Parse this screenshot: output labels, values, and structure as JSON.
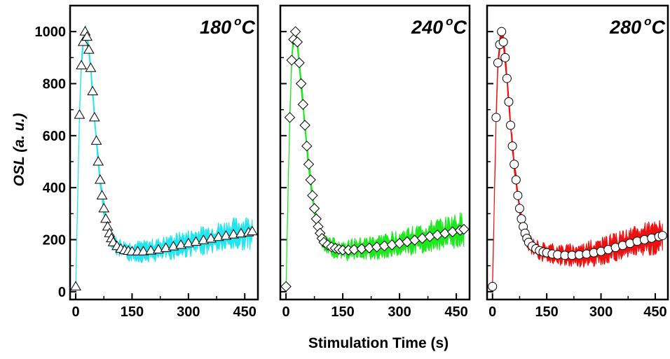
{
  "figure": {
    "ylabel": "OSL (a. u.)",
    "xlabel": "Stimulation Time (s)"
  },
  "chart_data": [
    {
      "type": "scatter",
      "title": "180 °C",
      "title_main": "180",
      "title_sup": "o",
      "title_unit": "C",
      "fill_color": "#22e5ee",
      "marker": "triangle",
      "xlim": [
        -15,
        485
      ],
      "ylim": [
        -30,
        1100
      ],
      "xticks": [
        0,
        150,
        300,
        450
      ],
      "yticks": [
        0,
        200,
        400,
        600,
        800,
        1000
      ],
      "series": [
        {
          "x": [
            0,
            10,
            15,
            20,
            25,
            30,
            35,
            40,
            45,
            50,
            55,
            60,
            65,
            70,
            75,
            80,
            85,
            90,
            95,
            100,
            110,
            120,
            130,
            140,
            150,
            165,
            180,
            200,
            220,
            240,
            260,
            280,
            300,
            320,
            340,
            360,
            380,
            400,
            420,
            440,
            460,
            470
          ],
          "y": [
            20,
            680,
            870,
            960,
            1000,
            980,
            930,
            860,
            770,
            670,
            580,
            500,
            430,
            370,
            320,
            280,
            250,
            225,
            205,
            190,
            175,
            165,
            160,
            157,
            155,
            155,
            155,
            158,
            162,
            168,
            174,
            180,
            186,
            192,
            198,
            204,
            210,
            215,
            220,
            224,
            228,
            232
          ]
        }
      ]
    },
    {
      "type": "scatter",
      "title": "240 °C",
      "title_main": "240",
      "title_sup": "o",
      "title_unit": "C",
      "fill_color": "#1ee81e",
      "marker": "diamond",
      "xlim": [
        -15,
        485
      ],
      "ylim": [
        -30,
        1100
      ],
      "xticks": [
        0,
        150,
        300,
        450
      ],
      "yticks": [
        0,
        200,
        400,
        600,
        800,
        1000
      ],
      "series": [
        {
          "x": [
            0,
            10,
            15,
            20,
            25,
            30,
            35,
            40,
            45,
            50,
            55,
            60,
            65,
            70,
            75,
            80,
            85,
            90,
            95,
            100,
            110,
            120,
            130,
            140,
            150,
            165,
            180,
            200,
            220,
            240,
            260,
            280,
            300,
            320,
            340,
            360,
            380,
            400,
            420,
            440,
            460,
            470
          ],
          "y": [
            20,
            670,
            890,
            970,
            1000,
            960,
            880,
            800,
            720,
            640,
            560,
            490,
            430,
            370,
            320,
            280,
            250,
            225,
            205,
            190,
            180,
            172,
            167,
            163,
            160,
            160,
            162,
            165,
            168,
            172,
            176,
            180,
            186,
            192,
            198,
            205,
            212,
            218,
            224,
            230,
            236,
            240
          ]
        }
      ]
    },
    {
      "type": "scatter",
      "title": "280 °C",
      "title_main": "280",
      "title_sup": "o",
      "title_unit": "C",
      "fill_color": "#ee1111",
      "marker": "circle",
      "xlim": [
        -15,
        485
      ],
      "ylim": [
        -30,
        1100
      ],
      "xticks": [
        0,
        150,
        300,
        450
      ],
      "yticks": [
        0,
        200,
        400,
        600,
        800,
        1000
      ],
      "series": [
        {
          "x": [
            0,
            10,
            15,
            20,
            25,
            30,
            35,
            40,
            45,
            50,
            55,
            60,
            65,
            70,
            75,
            80,
            85,
            90,
            95,
            100,
            110,
            120,
            130,
            140,
            150,
            165,
            180,
            200,
            220,
            240,
            260,
            280,
            300,
            320,
            340,
            360,
            380,
            400,
            420,
            440,
            460,
            470
          ],
          "y": [
            20,
            670,
            880,
            950,
            1000,
            960,
            900,
            820,
            730,
            640,
            560,
            490,
            430,
            370,
            320,
            280,
            250,
            225,
            205,
            190,
            175,
            165,
            158,
            153,
            150,
            145,
            142,
            140,
            140,
            142,
            145,
            150,
            155,
            162,
            170,
            178,
            186,
            194,
            200,
            206,
            212,
            216
          ]
        }
      ]
    }
  ]
}
